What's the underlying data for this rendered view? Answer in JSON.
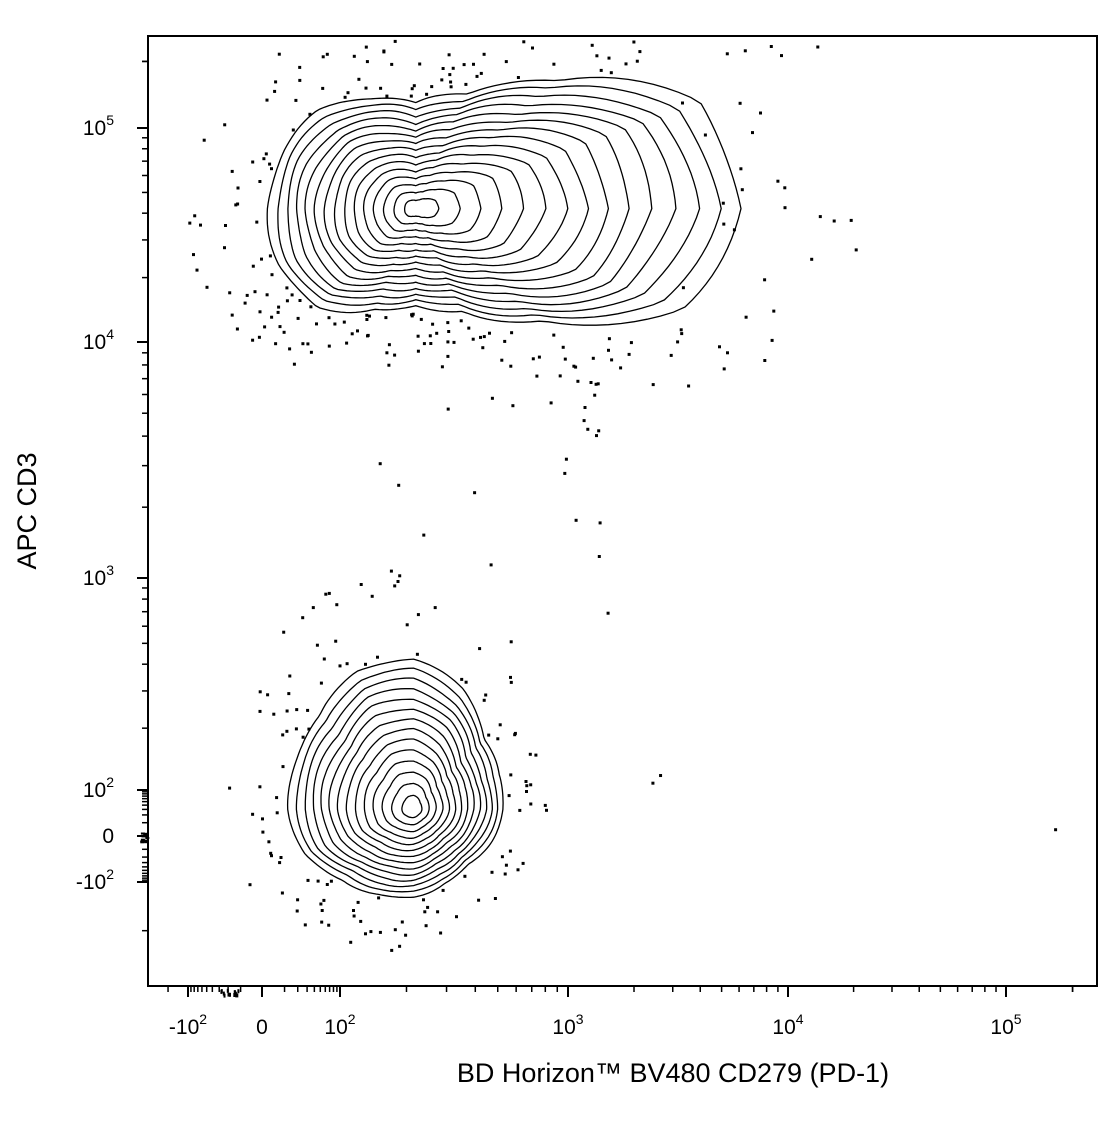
{
  "chart_data": {
    "type": "scatter",
    "subtype": "flow-cytometry contour plot (biexponential axes)",
    "title": "",
    "xlabel": "BD Horizon™ BV480 CD279 (PD-1)",
    "ylabel": "APC CD3",
    "x_ticks": [
      {
        "value": -100,
        "base": "-10",
        "exp": "2"
      },
      {
        "value": 0,
        "base": "0",
        "exp": ""
      },
      {
        "value": 100,
        "base": "10",
        "exp": "2"
      },
      {
        "value": 1000,
        "base": "10",
        "exp": "3"
      },
      {
        "value": 10000,
        "base": "10",
        "exp": "4"
      },
      {
        "value": 100000,
        "base": "10",
        "exp": "5"
      }
    ],
    "y_ticks": [
      {
        "value": -100,
        "base": "-10",
        "exp": "2"
      },
      {
        "value": 0,
        "base": "0",
        "exp": ""
      },
      {
        "value": 100,
        "base": "10",
        "exp": "2"
      },
      {
        "value": 1000,
        "base": "10",
        "exp": "3"
      },
      {
        "value": 10000,
        "base": "10",
        "exp": "4"
      },
      {
        "value": 100000,
        "base": "10",
        "exp": "5"
      }
    ],
    "xlim": [
      -250,
      250000
    ],
    "ylim": [
      -300,
      250000
    ],
    "grid": false,
    "legend": "none",
    "populations": [
      {
        "name": "",
        "x_peak": 220,
        "y_peak": 42000,
        "x_range": [
          40,
          4500
        ],
        "y_range": [
          13500,
          155000
        ]
      },
      {
        "name": "",
        "x_peak": 215,
        "y_peak": 30,
        "x_range": [
          45,
          480
        ],
        "y_range": [
          -195,
          290
        ]
      }
    ]
  }
}
